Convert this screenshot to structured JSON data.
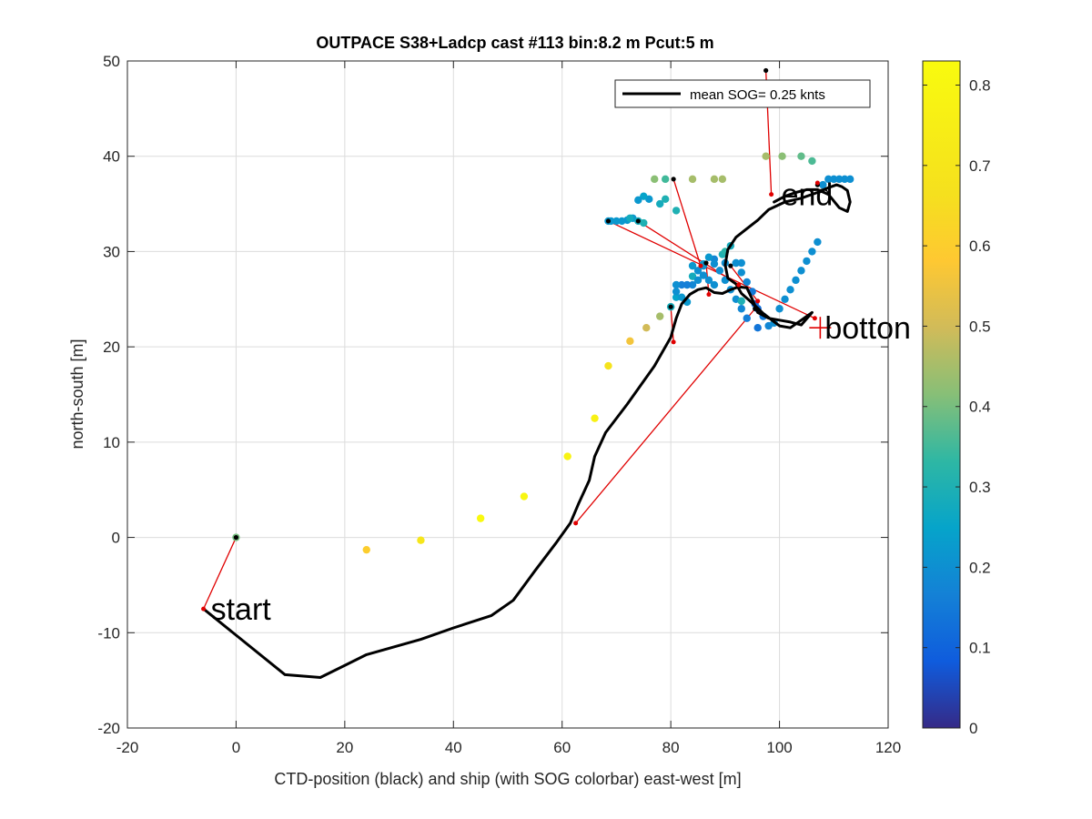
{
  "chart_data": {
    "type": "scatter",
    "title": "OUTPACE S38+Ladcp cast #113 bin:8.2 m  Pcut:5 m",
    "xlabel": "CTD-position (black) and ship (with SOG colorbar) east-west [m]",
    "ylabel": "north-south [m]",
    "xlim": [
      -20,
      120
    ],
    "ylim": [
      -20,
      50
    ],
    "xticks": [
      "-20",
      "0",
      "20",
      "40",
      "60",
      "80",
      "100",
      "120"
    ],
    "yticks": [
      "-20",
      "-10",
      "0",
      "10",
      "20",
      "30",
      "40",
      "50"
    ],
    "grid": true,
    "legend": {
      "position": "top-right",
      "label": "mean SOG=  0.25 knts",
      "color": "#000000"
    },
    "colorbar": {
      "colormap": "parula",
      "range": [
        0,
        0.83
      ],
      "ticks": [
        "0",
        "0.1",
        "0.2",
        "0.3",
        "0.4",
        "0.5",
        "0.6",
        "0.7",
        "0.8"
      ]
    },
    "annotations": [
      {
        "text": "start",
        "x": -6,
        "y": -7.5
      },
      {
        "text": "end",
        "x": 99,
        "y": 36
      },
      {
        "text": "botton",
        "x": 107,
        "y": 22
      }
    ],
    "ctd_track": {
      "color": "#000000",
      "x": [
        -6,
        9,
        15.5,
        24,
        34,
        40,
        47,
        51,
        55,
        59,
        61.5,
        63,
        65,
        66,
        68,
        72,
        77,
        80,
        81,
        82,
        83.5,
        85,
        86.5,
        88,
        89.5,
        91,
        92.5,
        94,
        95,
        96,
        98,
        100,
        102,
        104,
        106,
        104,
        102,
        100,
        97,
        95,
        93,
        92,
        90.5,
        90,
        90.5,
        92,
        94,
        96,
        98,
        101,
        104,
        107,
        109,
        110.5,
        111.5,
        112.5,
        113,
        112.5,
        111,
        109,
        107,
        105,
        103,
        101,
        99
      ],
      "y": [
        -7.5,
        -14.4,
        -14.7,
        -12.3,
        -10.7,
        -9.5,
        -8.2,
        -6.6,
        -3.5,
        -0.5,
        1.5,
        3.5,
        6,
        8.5,
        11,
        14,
        18,
        21,
        23,
        24.5,
        25.5,
        26,
        26.2,
        25.7,
        25.6,
        26,
        26.3,
        26.2,
        25,
        23.6,
        23,
        22.8,
        22.6,
        22.3,
        23.6,
        22.8,
        22,
        22.2,
        23.5,
        24.6,
        25.6,
        26.6,
        27.2,
        28.6,
        30.2,
        31.5,
        32.4,
        33.3,
        34.4,
        35.2,
        35.6,
        36.2,
        36.7,
        37,
        36.8,
        36.4,
        35.2,
        34.2,
        34.6,
        36,
        36.5,
        36.5,
        36.2,
        35.8,
        35.2
      ]
    },
    "ship_points": {
      "x": [
        0,
        24,
        34,
        45,
        53,
        61,
        66,
        68.5,
        72.5,
        75.5,
        78,
        80,
        81,
        83,
        84,
        86,
        88,
        89.5,
        90,
        91,
        92,
        93,
        94,
        95,
        95.5,
        96,
        97,
        98,
        99,
        100,
        101,
        102,
        103,
        104,
        105,
        106,
        107,
        108,
        109,
        110,
        111,
        112,
        113,
        96,
        94,
        93,
        92,
        91,
        90,
        89,
        88,
        87,
        86,
        85,
        84,
        83,
        82,
        81,
        81,
        82,
        83,
        84,
        85,
        86,
        87,
        88,
        90,
        92,
        93,
        80,
        81,
        79,
        78,
        77,
        76,
        75,
        74,
        73,
        72,
        71,
        70,
        69,
        68.5,
        72.5,
        74,
        75,
        79,
        81,
        84,
        88,
        89.5,
        97.5,
        100.5,
        104,
        106,
        93
      ],
      "y": [
        0,
        -1.3,
        -0.3,
        2,
        4.3,
        8.5,
        12.5,
        18,
        20.6,
        22,
        23.2,
        24.2,
        25.2,
        26.5,
        27.4,
        28.5,
        29.2,
        29.7,
        30,
        30.6,
        28.8,
        27.8,
        26.8,
        25.8,
        24.5,
        24,
        23.2,
        22.2,
        22.5,
        24,
        25,
        26,
        27,
        28,
        29,
        30,
        31,
        37,
        37.6,
        37.6,
        37.6,
        37.6,
        37.6,
        22,
        23,
        24,
        25,
        26,
        27,
        28,
        28.7,
        29.4,
        28.7,
        27,
        26.5,
        26.5,
        26.5,
        26.5,
        25.8,
        25.2,
        24.7,
        28.5,
        28,
        27.5,
        27,
        26.5,
        28.8,
        28.8,
        28.8,
        24.2,
        26.5,
        35.5,
        35,
        37.6,
        35.5,
        35.8,
        35.4,
        33.5,
        33.3,
        33.2,
        33.2,
        33.2,
        33.2,
        33.5,
        33.2,
        33,
        37.6,
        34.3,
        37.6,
        37.6,
        37.6,
        40,
        40,
        40,
        39.5,
        24.8
      ],
      "sog": [
        0.4,
        0.6,
        0.7,
        0.82,
        0.8,
        0.78,
        0.77,
        0.68,
        0.56,
        0.5,
        0.45,
        0.38,
        0.25,
        0.3,
        0.28,
        0.2,
        0.18,
        0.3,
        0.32,
        0.28,
        0.25,
        0.2,
        0.18,
        0.15,
        0.12,
        0.12,
        0.15,
        0.18,
        0.2,
        0.2,
        0.2,
        0.2,
        0.2,
        0.2,
        0.2,
        0.2,
        0.2,
        0.2,
        0.2,
        0.2,
        0.2,
        0.2,
        0.2,
        0.14,
        0.16,
        0.18,
        0.2,
        0.2,
        0.2,
        0.2,
        0.2,
        0.22,
        0.22,
        0.2,
        0.18,
        0.16,
        0.16,
        0.16,
        0.2,
        0.22,
        0.22,
        0.22,
        0.2,
        0.2,
        0.2,
        0.2,
        0.2,
        0.2,
        0.2,
        0.28,
        0.2,
        0.3,
        0.28,
        0.42,
        0.22,
        0.25,
        0.22,
        0.22,
        0.22,
        0.22,
        0.22,
        0.22,
        0.22,
        0.28,
        0.28,
        0.3,
        0.35,
        0.3,
        0.45,
        0.45,
        0.45,
        0.45,
        0.42,
        0.38,
        0.36,
        0.3
      ]
    },
    "black_markers": {
      "x": [
        0,
        97.5,
        80.5,
        68.5,
        74,
        86.5,
        80,
        95.5,
        91,
        107
      ],
      "y": [
        0,
        49,
        37.6,
        33.2,
        33.2,
        28.8,
        24.2,
        24,
        28.5,
        37
      ]
    },
    "red_links": {
      "color": "#e00000",
      "ctd": [
        [
          -6,
          -7.5
        ],
        [
          98.5,
          36
        ],
        [
          85.5,
          28.5
        ],
        [
          106.5,
          23
        ],
        [
          92.5,
          26.5
        ],
        [
          87,
          25.5
        ],
        [
          80.5,
          20.5
        ],
        [
          62.5,
          1.5
        ],
        [
          96,
          24.8
        ],
        [
          107,
          37.2
        ]
      ],
      "ship": [
        [
          0,
          0
        ],
        [
          97.5,
          49
        ],
        [
          80.5,
          37.6
        ],
        [
          68.5,
          33.2
        ],
        [
          74,
          33.2
        ],
        [
          86.5,
          28.8
        ],
        [
          80,
          24.2
        ],
        [
          95.5,
          24
        ],
        [
          91,
          28.5
        ],
        [
          107,
          37
        ]
      ]
    },
    "bottom_marker": {
      "x": 107.5,
      "y": 22,
      "color": "#e00000"
    }
  }
}
